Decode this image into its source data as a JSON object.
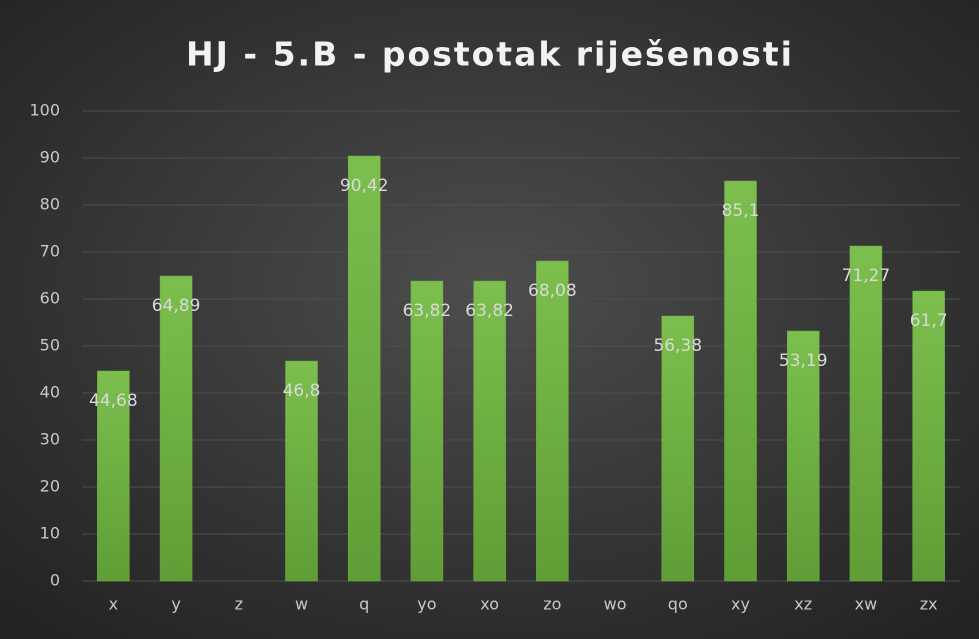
{
  "chart_data": {
    "type": "bar",
    "title": "HJ - 5.B - postotak riješenosti",
    "categories": [
      "x",
      "y",
      "z",
      "w",
      "q",
      "yo",
      "xo",
      "zo",
      "wo",
      "qo",
      "xy",
      "xz",
      "xw",
      "zx"
    ],
    "values": [
      44.68,
      64.89,
      null,
      46.8,
      90.42,
      63.82,
      63.82,
      68.08,
      null,
      56.38,
      85.1,
      53.19,
      71.27,
      61.7
    ],
    "value_labels": [
      "44,68",
      "64,89",
      null,
      "46,8",
      "90,42",
      "63,82",
      "63,82",
      "68,08",
      null,
      "56,38",
      "85,1",
      "53,19",
      "71,27",
      "61,7"
    ],
    "color": "#6fb043",
    "ylim": [
      0,
      100
    ],
    "yticks": [
      0,
      10,
      20,
      30,
      40,
      50,
      60,
      70,
      80,
      90,
      100
    ],
    "grid": true
  }
}
